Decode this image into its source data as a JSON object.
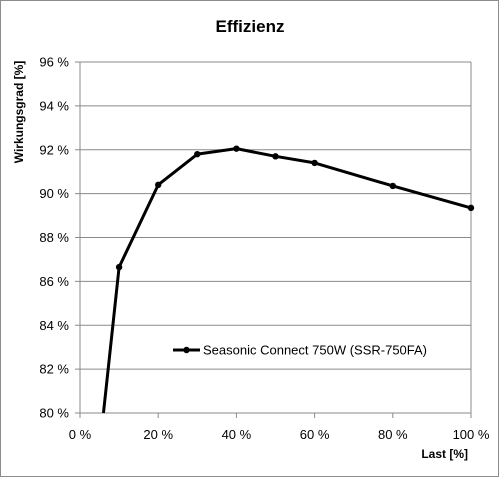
{
  "chart_data": {
    "type": "line",
    "title": "Effizienz",
    "xlabel": "Last [%]",
    "ylabel": "Wirkungsgrad [%]",
    "xlim": [
      0,
      100
    ],
    "ylim": [
      80,
      96
    ],
    "x_ticks": [
      0,
      20,
      40,
      60,
      80,
      100
    ],
    "x_tick_labels": [
      "0 %",
      "20 %",
      "40 %",
      "60 %",
      "80 %",
      "100 %"
    ],
    "y_ticks": [
      80,
      82,
      84,
      86,
      88,
      90,
      92,
      94,
      96
    ],
    "y_tick_labels": [
      "80 %",
      "82 %",
      "84 %",
      "86 %",
      "88 %",
      "90 %",
      "92 %",
      "94 %",
      "96 %"
    ],
    "grid": "horizontal",
    "legend_position": "bottom-right",
    "series": [
      {
        "name": "Seasonic Connect 750W (SSR-750FA)",
        "color": "#000000",
        "x": [
          10,
          20,
          30,
          40,
          50,
          60,
          80,
          100
        ],
        "y": [
          86.65,
          90.4,
          91.8,
          92.05,
          91.7,
          91.4,
          90.35,
          89.35
        ],
        "line_start": {
          "x": 6,
          "y": 80
        }
      }
    ]
  }
}
